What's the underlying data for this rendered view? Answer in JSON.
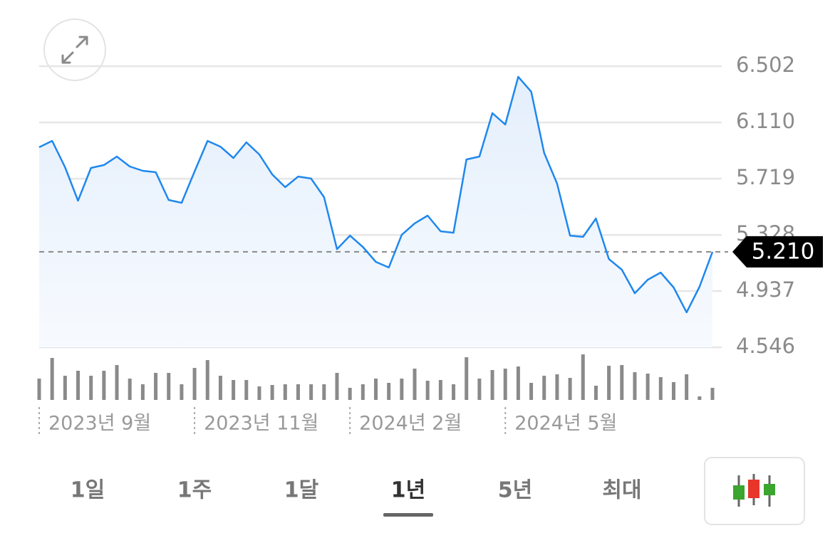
{
  "chart_data": {
    "type": "line",
    "categories": [
      "2023년 9월",
      null,
      null,
      null,
      null,
      null,
      null,
      null,
      null,
      null,
      null,
      null,
      "2023년 11월",
      null,
      null,
      null,
      null,
      null,
      null,
      null,
      null,
      null,
      null,
      null,
      "2024년 2월",
      null,
      null,
      null,
      null,
      null,
      null,
      null,
      null,
      null,
      null,
      null,
      "2024년 5월",
      null,
      null,
      null,
      null,
      null,
      null,
      null,
      null,
      null,
      null,
      null,
      null,
      null,
      null,
      null,
      null
    ],
    "series": [
      {
        "color": "#1f88ee",
        "values": [
          5.938,
          5.982,
          5.799,
          5.566,
          5.794,
          5.814,
          5.873,
          5.804,
          5.774,
          5.764,
          5.571,
          5.551,
          5.769,
          5.982,
          5.942,
          5.863,
          5.972,
          5.888,
          5.749,
          5.66,
          5.734,
          5.72,
          5.591,
          5.229,
          5.323,
          5.244,
          5.14,
          5.101,
          5.328,
          5.408,
          5.462,
          5.353,
          5.343,
          5.853,
          5.873,
          6.175,
          6.096,
          6.428,
          6.324,
          5.898,
          5.685,
          5.323,
          5.314,
          5.442,
          5.16,
          5.086,
          4.922,
          5.016,
          5.066,
          4.962,
          4.789,
          4.967,
          5.21
        ]
      }
    ],
    "volume": {
      "color": "#8a8a8a",
      "values": [
        30,
        59,
        34,
        41,
        34,
        41,
        49,
        30,
        22,
        38,
        38,
        22,
        45,
        56,
        34,
        28,
        28,
        19,
        21,
        22,
        22,
        22,
        22,
        38,
        17,
        22,
        30,
        24,
        30,
        44,
        27,
        28,
        22,
        60,
        30,
        42,
        44,
        47,
        24,
        34,
        36,
        31,
        64,
        20,
        48,
        49,
        39,
        37,
        32,
        25,
        36,
        5,
        17
      ]
    },
    "ylim": [
      4.546,
      6.502
    ],
    "yticks": [
      4.546,
      4.937,
      5.328,
      5.719,
      {
        "value": 6.11,
        "label": "6.110"
      },
      6.502
    ],
    "current": {
      "value": 5.21,
      "label": "5.210"
    },
    "grid": true
  },
  "tabs": {
    "items": [
      "1일",
      "1주",
      "1달",
      "1년",
      "5년",
      "최대"
    ],
    "selected_index": 3
  }
}
